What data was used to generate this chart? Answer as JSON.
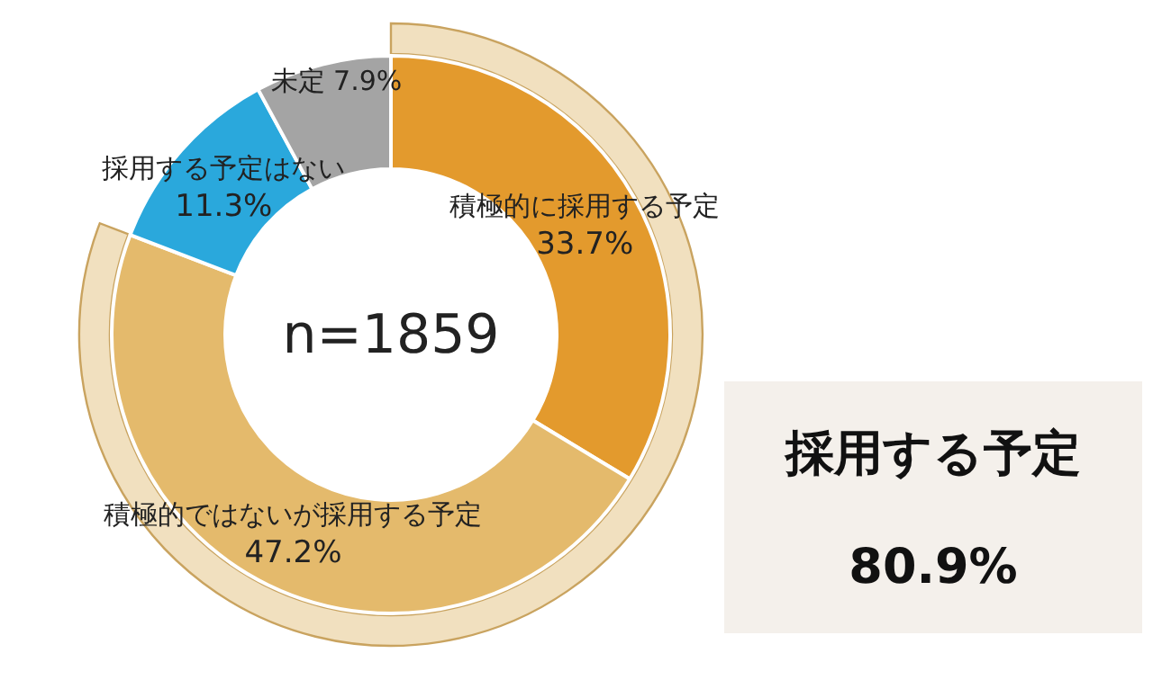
{
  "chart_data": {
    "type": "donut",
    "categories": [
      "積極的に採用する予定",
      "積極的ではないが採用する予定",
      "採用する予定はない",
      "未定"
    ],
    "values": [
      33.7,
      47.2,
      11.3,
      7.9
    ],
    "value_labels": [
      "33.7%",
      "47.2%",
      "11.3%",
      "7.9%"
    ],
    "colors": [
      "#e39a2d",
      "#e4ba6c",
      "#2aa8dc",
      "#a4a4a4"
    ],
    "legend": false,
    "annotations": [
      "n=1859",
      "採用する予定",
      "80.9%"
    ]
  }
}
